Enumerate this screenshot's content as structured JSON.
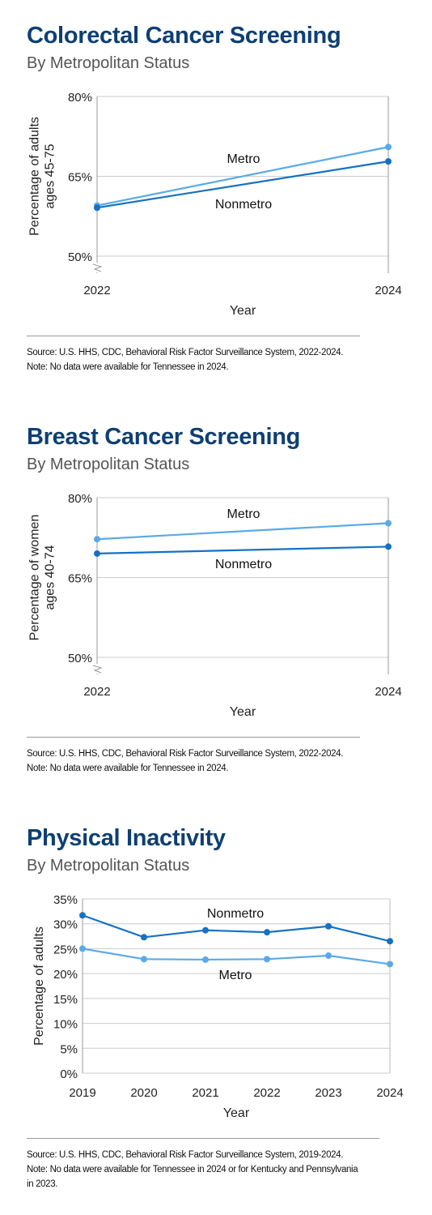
{
  "panels": [
    {
      "title": "Colorectal Cancer Screening",
      "subtitle": "By Metropolitan Status",
      "source": "Source: U.S. HHS, CDC, Behavioral Risk Factor Surveillance System, 2022-2024.",
      "note": [
        "Note: No data were available for Tennessee in 2024."
      ]
    },
    {
      "title": "Breast Cancer Screening",
      "subtitle": "By Metropolitan Status",
      "source": "Source: U.S. HHS, CDC, Behavioral Risk Factor Surveillance System, 2022-2024.",
      "note": [
        "Note: No data were available for Tennessee in 2024."
      ]
    },
    {
      "title": "Physical Inactivity",
      "subtitle": "By Metropolitan Status",
      "source": "Source: U.S. HHS, CDC, Behavioral Risk Factor Surveillance System, 2019-2024.",
      "note": [
        "Note: No data were available for Tennessee in 2024 or for Kentucky and Pennsylvania",
        "in 2023."
      ]
    }
  ],
  "colors": {
    "metro": "#5aaae8",
    "nonmetro": "#1571c4",
    "grid": "#cccccc",
    "title": "#0e3f73"
  },
  "chart_data": [
    {
      "type": "line",
      "xlabel": "Year",
      "ylabel": [
        "Percentage of adults",
        "ages 45-75"
      ],
      "x": [
        2022,
        2024
      ],
      "ylim": [
        50,
        80
      ],
      "yticks": [
        50,
        65,
        80
      ],
      "ytick_labels": [
        "50%",
        "65%",
        "80%"
      ],
      "axis_break": true,
      "series": [
        {
          "name": "Metro",
          "key": "metro",
          "values": [
            59.5,
            70.5
          ]
        },
        {
          "name": "Nonmetro",
          "key": "nonmetro",
          "values": [
            59.1,
            67.8
          ]
        }
      ]
    },
    {
      "type": "line",
      "xlabel": "Year",
      "ylabel": [
        "Percentage of women",
        "ages 40-74"
      ],
      "x": [
        2022,
        2024
      ],
      "ylim": [
        50,
        80
      ],
      "yticks": [
        50,
        65,
        80
      ],
      "ytick_labels": [
        "50%",
        "65%",
        "80%"
      ],
      "axis_break": true,
      "series": [
        {
          "name": "Metro",
          "key": "metro",
          "values": [
            72.2,
            75.2
          ]
        },
        {
          "name": "Nonmetro",
          "key": "nonmetro",
          "values": [
            69.5,
            70.8
          ]
        }
      ]
    },
    {
      "type": "line",
      "xlabel": "Year",
      "ylabel": [
        "Percentage of adults"
      ],
      "x": [
        2019,
        2020,
        2021,
        2022,
        2023,
        2024
      ],
      "ylim": [
        0,
        35
      ],
      "yticks": [
        0,
        5,
        10,
        15,
        20,
        25,
        30,
        35
      ],
      "ytick_labels": [
        "0%",
        "5%",
        "10%",
        "15%",
        "20%",
        "25%",
        "30%",
        "35%"
      ],
      "axis_break": false,
      "series": [
        {
          "name": "Nonmetro",
          "key": "nonmetro",
          "values": [
            31.7,
            27.3,
            28.7,
            28.3,
            29.5,
            26.5
          ]
        },
        {
          "name": "Metro",
          "key": "metro",
          "values": [
            25.0,
            22.9,
            22.8,
            22.9,
            23.6,
            21.9
          ]
        }
      ]
    }
  ]
}
